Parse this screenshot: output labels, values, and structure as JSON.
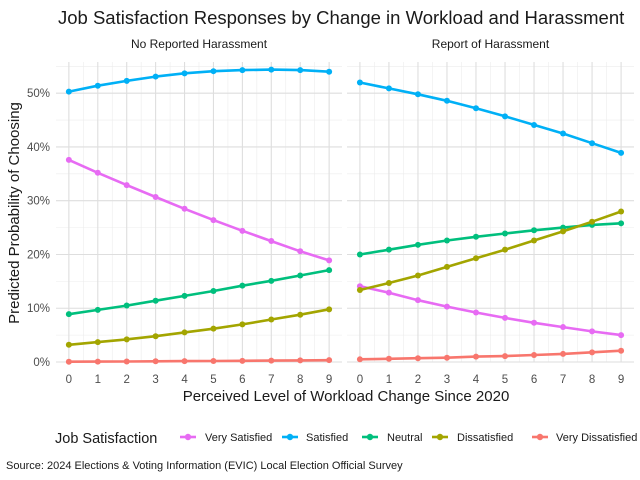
{
  "chart_data": {
    "type": "line",
    "title": "Job Satisfaction Responses by Change in Workload and Harassment",
    "xlabel": "Perceived Level of Workload Change Since 2020",
    "ylabel": "Predicted Probability of Choosing",
    "x": [
      0,
      1,
      2,
      3,
      4,
      5,
      6,
      7,
      8,
      9
    ],
    "ylim": [
      0,
      0.55
    ],
    "y_ticks": [
      0,
      0.1,
      0.2,
      0.3,
      0.4,
      0.5
    ],
    "y_tick_labels": [
      "0%",
      "10%",
      "20%",
      "30%",
      "40%",
      "50%"
    ],
    "grid": true,
    "legend_title": "Job Satisfaction",
    "legend_position": "bottom",
    "caption": "Source: 2024 Elections & Voting Information (EVIC) Local Election Official Survey",
    "categories": [
      {
        "name": "Very Satisfied",
        "color": "#e76bf3"
      },
      {
        "name": "Satisfied",
        "color": "#00b0f6"
      },
      {
        "name": "Neutral",
        "color": "#00bf7d"
      },
      {
        "name": "Dissatisfied",
        "color": "#a3a500"
      },
      {
        "name": "Very Dissatisfied",
        "color": "#f8766d"
      }
    ],
    "panels": [
      {
        "title": "No Reported Harassment",
        "series": [
          {
            "name": "Very Satisfied",
            "values": [
              0.376,
              0.352,
              0.329,
              0.307,
              0.285,
              0.264,
              0.244,
              0.225,
              0.206,
              0.189
            ]
          },
          {
            "name": "Satisfied",
            "values": [
              0.503,
              0.514,
              0.523,
              0.531,
              0.537,
              0.541,
              0.543,
              0.544,
              0.543,
              0.54
            ]
          },
          {
            "name": "Neutral",
            "values": [
              0.089,
              0.097,
              0.105,
              0.114,
              0.123,
              0.132,
              0.142,
              0.151,
              0.161,
              0.171
            ]
          },
          {
            "name": "Dissatisfied",
            "values": [
              0.032,
              0.037,
              0.042,
              0.048,
              0.055,
              0.062,
              0.07,
              0.079,
              0.088,
              0.098
            ]
          },
          {
            "name": "Very Dissatisfied",
            "values": [
              0.0005,
              0.0008,
              0.001,
              0.0013,
              0.0016,
              0.0019,
              0.0022,
              0.0026,
              0.003,
              0.0034
            ]
          }
        ]
      },
      {
        "title": "Report of Harassment",
        "series": [
          {
            "name": "Very Satisfied",
            "values": [
              0.141,
              0.129,
              0.115,
              0.103,
              0.092,
              0.082,
              0.073,
              0.065,
              0.057,
              0.05
            ]
          },
          {
            "name": "Satisfied",
            "values": [
              0.52,
              0.509,
              0.498,
              0.486,
              0.472,
              0.457,
              0.441,
              0.425,
              0.407,
              0.389
            ]
          },
          {
            "name": "Neutral",
            "values": [
              0.2,
              0.209,
              0.218,
              0.226,
              0.233,
              0.239,
              0.245,
              0.25,
              0.255,
              0.258
            ]
          },
          {
            "name": "Dissatisfied",
            "values": [
              0.134,
              0.147,
              0.161,
              0.177,
              0.193,
              0.209,
              0.226,
              0.243,
              0.261,
              0.28
            ]
          },
          {
            "name": "Very Dissatisfied",
            "values": [
              0.005,
              0.006,
              0.007,
              0.008,
              0.01,
              0.011,
              0.013,
              0.015,
              0.018,
              0.021
            ]
          }
        ]
      }
    ]
  }
}
